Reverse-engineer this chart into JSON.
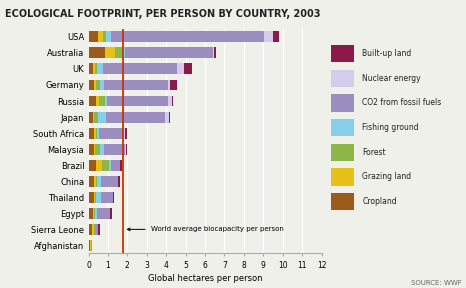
{
  "title": "ECOLOGICAL FOOTPRINT, PER PERSON BY COUNTRY, 2003",
  "xlabel": "Global hectares per person",
  "source": "SOURCE: WWF",
  "countries": [
    "USA",
    "Australia",
    "UK",
    "Germany",
    "Russia",
    "Japan",
    "South Africa",
    "Malaysia",
    "Brazil",
    "China",
    "Thailand",
    "Egypt",
    "Sierra Leone",
    "Afghanistan"
  ],
  "categories": [
    "Cropland",
    "Grazing land",
    "Forest",
    "Fishing ground",
    "CO2 from fossil fuels",
    "Nuclear energy",
    "Built-up land"
  ],
  "colors": [
    "#9C5A1D",
    "#E8C01A",
    "#8DB548",
    "#87CEEB",
    "#9B8DC0",
    "#D4CCE8",
    "#8B1A4A"
  ],
  "data": {
    "USA": [
      0.5,
      0.25,
      0.15,
      0.25,
      7.9,
      0.45,
      0.3
    ],
    "Australia": [
      0.85,
      0.5,
      0.35,
      0.2,
      4.5,
      0.05,
      0.1
    ],
    "UK": [
      0.25,
      0.07,
      0.1,
      0.3,
      3.85,
      0.35,
      0.4
    ],
    "Germany": [
      0.3,
      0.08,
      0.22,
      0.18,
      3.3,
      0.12,
      0.35
    ],
    "Russia": [
      0.38,
      0.18,
      0.3,
      0.1,
      3.15,
      0.18,
      0.08
    ],
    "Japan": [
      0.25,
      0.04,
      0.18,
      0.45,
      3.0,
      0.22,
      0.08
    ],
    "South Africa": [
      0.28,
      0.1,
      0.08,
      0.08,
      1.3,
      0.02,
      0.1
    ],
    "Malaysia": [
      0.28,
      0.04,
      0.25,
      0.22,
      1.1,
      0.02,
      0.08
    ],
    "Brazil": [
      0.4,
      0.3,
      0.35,
      0.1,
      0.45,
      0.01,
      0.12
    ],
    "China": [
      0.28,
      0.08,
      0.08,
      0.18,
      0.9,
      0.02,
      0.08
    ],
    "Thailand": [
      0.28,
      0.04,
      0.08,
      0.22,
      0.65,
      0.01,
      0.05
    ],
    "Egypt": [
      0.22,
      0.08,
      0.04,
      0.1,
      0.65,
      0.01,
      0.12
    ],
    "Sierra Leone": [
      0.18,
      0.1,
      0.1,
      0.02,
      0.08,
      0.0,
      0.12
    ],
    "Afghanistan": [
      0.1,
      0.02,
      0.05,
      0.01,
      0.01,
      0.0,
      0.01
    ]
  },
  "vline_x": 1.8,
  "vline_label": "World average biocapacity per person",
  "xlim": [
    0,
    12
  ],
  "xticks": [
    0,
    1,
    2,
    3,
    4,
    5,
    6,
    7,
    8,
    9,
    10,
    11,
    12
  ],
  "bg_color": "#F0F0EB",
  "title_fontsize": 7.5,
  "label_fontsize": 6.5
}
